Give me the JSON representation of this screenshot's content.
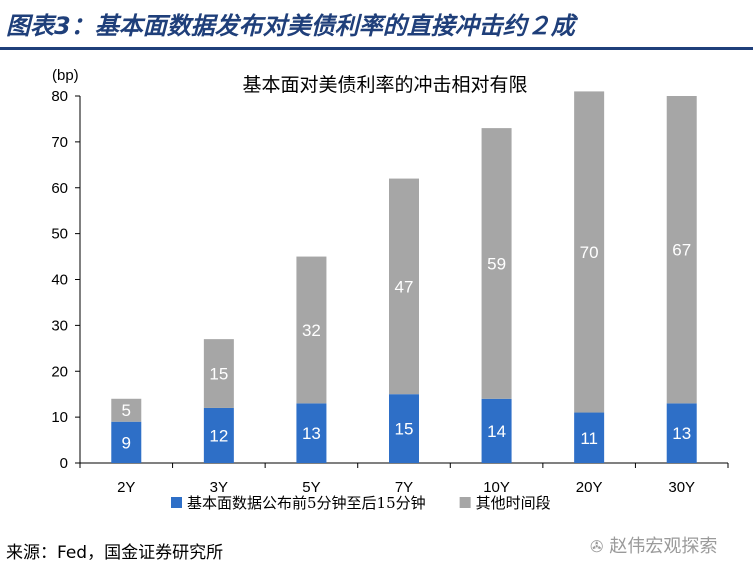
{
  "header": {
    "title": "图表3：基本面数据发布对美债利率的直接冲击约２成"
  },
  "footer": {
    "source": "来源：Fed，国金证券研究所",
    "watermark": "赵伟宏观探索",
    "watermark_icon": "wechat-icon"
  },
  "colors": {
    "primary_series": "#2e6fc7",
    "secondary_series": "#a6a6a6",
    "header_accent": "#1f3f7a"
  },
  "chart_data": {
    "type": "bar",
    "stacked": true,
    "title": "基本面对美债利率的冲击相对有限",
    "unit_label": "(bp)",
    "categories": [
      "2Y",
      "3Y",
      "5Y",
      "7Y",
      "10Y",
      "20Y",
      "30Y"
    ],
    "series": [
      {
        "name": "基本面数据公布前5分钟至后15分钟",
        "values": [
          9,
          12,
          13,
          15,
          14,
          11,
          13
        ]
      },
      {
        "name": "其他时间段",
        "values": [
          5,
          15,
          32,
          47,
          59,
          70,
          67
        ]
      }
    ],
    "ylim": [
      0,
      80
    ],
    "yticks": [
      0,
      10,
      20,
      30,
      40,
      50,
      60,
      70,
      80
    ],
    "grid": false,
    "legend_position": "bottom"
  }
}
